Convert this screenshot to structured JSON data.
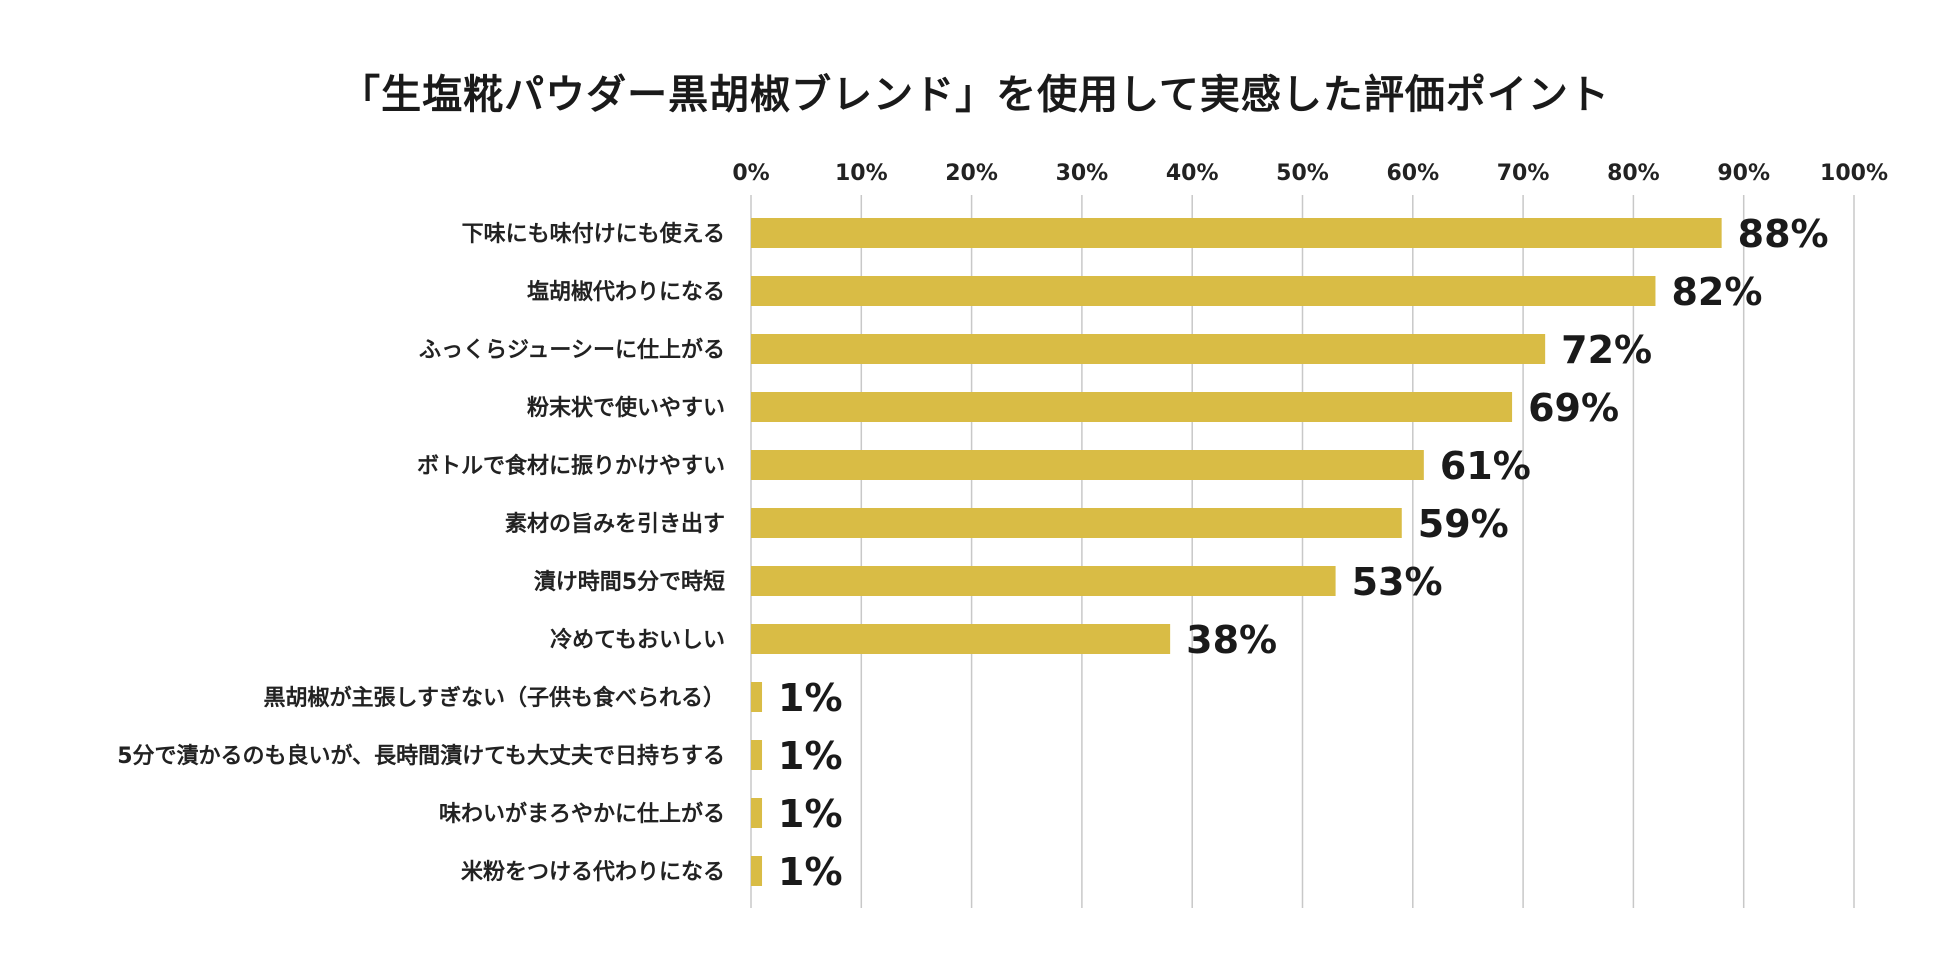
{
  "chart_data": {
    "type": "bar",
    "orientation": "horizontal",
    "title": "「生塩糀パウダー黒胡椒ブレンド」を使用して実感した評価ポイント",
    "xlabel": "",
    "ylabel": "",
    "xlim": [
      0,
      100
    ],
    "grid": true,
    "axis_position": "top",
    "bar_color": "#D9BC45",
    "ticks": [
      "0%",
      "10%",
      "20%",
      "30%",
      "40%",
      "50%",
      "60%",
      "70%",
      "80%",
      "90%",
      "100%"
    ],
    "tick_values": [
      0,
      10,
      20,
      30,
      40,
      50,
      60,
      70,
      80,
      90,
      100
    ],
    "categories": [
      "下味にも味付けにも使える",
      "塩胡椒代わりになる",
      "ふっくらジューシーに仕上がる",
      "粉末状で使いやすい",
      "ボトルで食材に振りかけやすい",
      "素材の旨みを引き出す",
      "漬け時間5分で時短",
      "冷めてもおいしい",
      "黒胡椒が主張しすぎない（子供も食べられる）",
      "5分で漬かるのも良いが、長時間漬けても大丈夫で日持ちする",
      "味わいがまろやかに仕上がる",
      "米粉をつける代わりになる"
    ],
    "values": [
      88,
      82,
      72,
      69,
      61,
      59,
      53,
      38,
      1,
      1,
      1,
      1
    ],
    "value_labels": [
      "88%",
      "82%",
      "72%",
      "69%",
      "61%",
      "59%",
      "53%",
      "38%",
      "1%",
      "1%",
      "1%",
      "1%"
    ]
  }
}
